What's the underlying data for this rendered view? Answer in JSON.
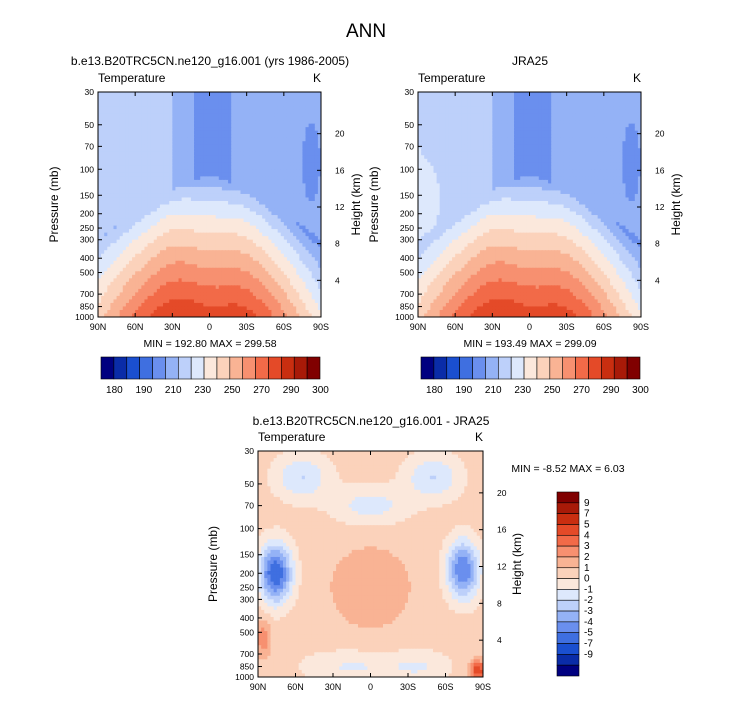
{
  "figure": {
    "title": "ANN"
  },
  "palette": {
    "temperature": [
      "#000080",
      "#0a2ca8",
      "#1a4fd0",
      "#3f6fe0",
      "#6a8fee",
      "#94b2f6",
      "#bdd0fa",
      "#dde8fc",
      "#fbe8dc",
      "#fbd2bb",
      "#f9b394",
      "#f79070",
      "#f26a48",
      "#e44a28",
      "#c92e10",
      "#a81a08",
      "#800000"
    ],
    "difference": [
      "#000080",
      "#0a2ca8",
      "#1a4fd0",
      "#3f6fe0",
      "#6a8fee",
      "#94b2f6",
      "#bdd0fa",
      "#dde8fc",
      "#fbe8dc",
      "#fbd2bb",
      "#f9b394",
      "#f79070",
      "#f26a48",
      "#e44a28",
      "#c92e10",
      "#a81a08",
      "#800000"
    ]
  },
  "chart_data": [
    {
      "type": "heatmap",
      "id": "model",
      "title": "b.e13.B20TRC5CN.ne120_g16.001 (yrs 1986-2005)",
      "left_label": "Temperature",
      "right_label": "K",
      "ylabel": "Pressure (mb)",
      "ylabel_right": "Height (km)",
      "x_ticks": [
        "90N",
        "60N",
        "30N",
        "0",
        "30S",
        "60S",
        "90S"
      ],
      "x_range": [
        90,
        -90
      ],
      "y_ticks": [
        30,
        50,
        70,
        100,
        150,
        200,
        250,
        300,
        400,
        500,
        700,
        850,
        1000
      ],
      "y_range_mb": [
        30,
        1000
      ],
      "height_ticks_km": [
        4,
        8,
        12,
        16,
        20
      ],
      "min": 192.8,
      "max": 299.58,
      "min_max_text": "MIN = 192.80   MAX = 299.58",
      "colorbar_ticks": [
        "180",
        "190",
        "210",
        "230",
        "250",
        "270",
        "290",
        "300"
      ],
      "colorbar_levels": [
        180,
        185,
        190,
        200,
        210,
        220,
        230,
        240,
        250,
        260,
        270,
        280,
        290,
        295,
        300
      ]
    },
    {
      "type": "heatmap",
      "id": "obs",
      "title": "JRA25",
      "left_label": "Temperature",
      "right_label": "K",
      "ylabel": "Pressure (mb)",
      "ylabel_right": "Height (km)",
      "x_ticks": [
        "90N",
        "60N",
        "30N",
        "0",
        "30S",
        "60S",
        "90S"
      ],
      "x_range": [
        90,
        -90
      ],
      "y_ticks": [
        30,
        50,
        70,
        100,
        150,
        200,
        250,
        300,
        400,
        500,
        700,
        850,
        1000
      ],
      "y_range_mb": [
        30,
        1000
      ],
      "height_ticks_km": [
        4,
        8,
        12,
        16,
        20
      ],
      "min": 193.49,
      "max": 299.09,
      "min_max_text": "MIN = 193.49   MAX = 299.09",
      "colorbar_ticks": [
        "180",
        "190",
        "210",
        "230",
        "250",
        "270",
        "290",
        "300"
      ],
      "colorbar_levels": [
        180,
        185,
        190,
        200,
        210,
        220,
        230,
        240,
        250,
        260,
        270,
        280,
        290,
        295,
        300
      ]
    },
    {
      "type": "heatmap",
      "id": "diff",
      "title": "b.e13.B20TRC5CN.ne120_g16.001 - JRA25",
      "left_label": "Temperature",
      "right_label": "K",
      "ylabel": "Pressure (mb)",
      "ylabel_right": "Height (km)",
      "x_ticks": [
        "90N",
        "60N",
        "30N",
        "0",
        "30S",
        "60S",
        "90S"
      ],
      "x_range": [
        90,
        -90
      ],
      "y_ticks": [
        30,
        50,
        70,
        100,
        150,
        200,
        250,
        300,
        400,
        500,
        700,
        850,
        1000
      ],
      "y_range_mb": [
        30,
        1000
      ],
      "height_ticks_km": [
        4,
        8,
        12,
        16,
        20
      ],
      "min": -8.52,
      "max": 6.03,
      "min_max_text": "MIN =  -8.52   MAX =   6.03",
      "colorbar_ticks": [
        "9",
        "7",
        "5",
        "4",
        "3",
        "2",
        "1",
        "0",
        "-1",
        "-2",
        "-3",
        "-4",
        "-5",
        "-7",
        "-9"
      ],
      "colorbar_levels": [
        -9,
        -7,
        -5,
        -4,
        -3,
        -2,
        -1,
        0,
        1,
        2,
        3,
        4,
        5,
        7,
        9
      ]
    }
  ]
}
